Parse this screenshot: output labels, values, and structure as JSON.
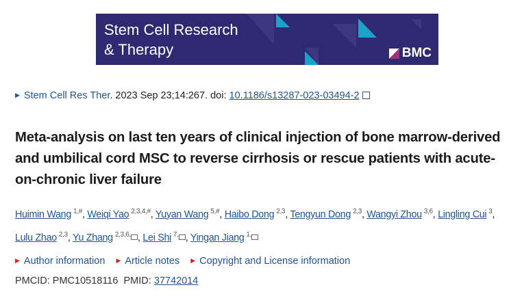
{
  "banner": {
    "journal_line1": "Stem Cell Research",
    "journal_line2": "& Therapy",
    "publisher": "BMC",
    "colors": {
      "background": "#2e2a72",
      "accent": "#1ba2c9"
    }
  },
  "citation": {
    "journal": "Stem Cell Res Ther",
    "date_text": ". 2023 Sep 23;14:267. doi: ",
    "doi": "10.1186/s13287-023-03494-2"
  },
  "title": "Meta-analysis on last ten years of clinical injection of bone marrow-derived and umbilical cord MSC to reverse cirrhosis or rescue patients with acute-on-chronic liver failure",
  "authors": [
    {
      "name": "Huimin Wang",
      "aff": "1,#",
      "mail": false
    },
    {
      "name": "Weiqi Yao",
      "aff": "2,3,4,#",
      "mail": false
    },
    {
      "name": "Yuyan Wang",
      "aff": "5,#",
      "mail": false
    },
    {
      "name": "Haibo Dong",
      "aff": "2,3",
      "mail": false
    },
    {
      "name": "Tengyun Dong",
      "aff": "2,3",
      "mail": false
    },
    {
      "name": "Wangyi Zhou",
      "aff": "3,6",
      "mail": false
    },
    {
      "name": "Lingling Cui",
      "aff": "3",
      "mail": false
    },
    {
      "name": "Lulu Zhao",
      "aff": "2,3",
      "mail": false
    },
    {
      "name": "Yu Zhang",
      "aff": "2,3,6,",
      "mail": true
    },
    {
      "name": "Lei Shi",
      "aff": "7,",
      "mail": true
    },
    {
      "name": "Yingan Jiang",
      "aff": "1,",
      "mail": true
    }
  ],
  "links": [
    "Author information",
    "Article notes",
    "Copyright and License information"
  ],
  "ids": {
    "pmcid_label": "PMCID: ",
    "pmcid": "PMC10518116",
    "pmid_label": "PMID: ",
    "pmid": "37742014"
  }
}
